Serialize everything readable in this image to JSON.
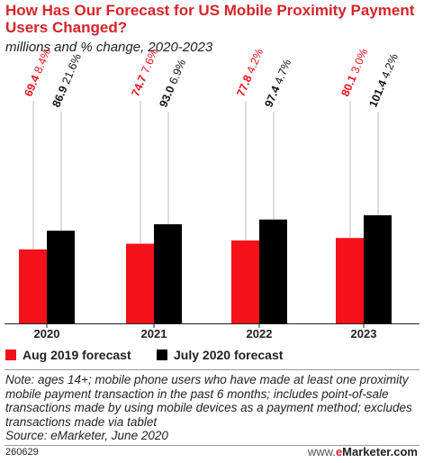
{
  "header": {
    "title": "How Has Our Forecast for US Mobile Proximity Payment Users Changed?",
    "subtitle": "millions and % change, 2020-2023"
  },
  "colors": {
    "aug2019": "#f5111a",
    "jul2020": "#000000",
    "leader": "#bbbbbb",
    "baseline": "#222222"
  },
  "chart_data": {
    "type": "bar",
    "title": "How Has Our Forecast for US Mobile Proximity Payment Users Changed?",
    "subtitle": "millions and % change, 2020-2023",
    "categories": [
      "2020",
      "2021",
      "2022",
      "2023"
    ],
    "series": [
      {
        "name": "Aug 2019 forecast",
        "values": [
          69.4,
          74.7,
          77.8,
          80.1
        ],
        "pct": [
          "8.4%",
          "7.6%",
          "4.2%",
          "3.0%"
        ]
      },
      {
        "name": "July 2020 forecast",
        "values": [
          86.9,
          93.0,
          97.4,
          101.4
        ],
        "pct": [
          "21.6%",
          "6.9%",
          "4.7%",
          "4.2%"
        ]
      }
    ],
    "ylim": [
      0,
      245
    ],
    "grid": false,
    "legend": "bottom"
  },
  "legend": {
    "aug": "Aug 2019 forecast",
    "jul": "July 2020 forecast"
  },
  "footer": {
    "note": "Note: ages 14+; mobile phone users who have made at least one proximity mobile payment transaction in the past 6 months; includes point-of-sale transactions made by using mobile devices as a payment method; excludes transactions made via tablet",
    "source": "Source: eMarketer, June 2020",
    "code": "260629",
    "logo_www": "www.",
    "logo_e": "e",
    "logo_rest": "Marketer.com"
  }
}
